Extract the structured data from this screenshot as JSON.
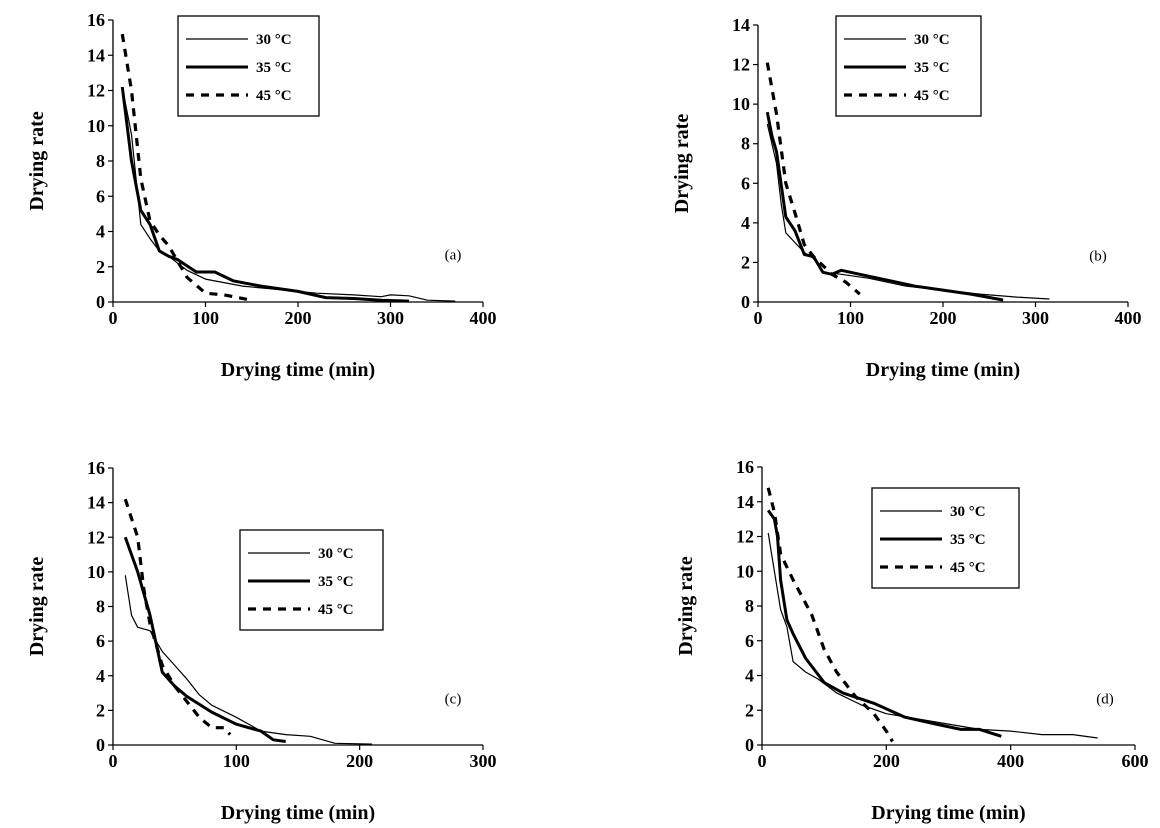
{
  "chart_data": [
    {
      "type": "line",
      "panel_label": "(a)",
      "xlabel": "Drying time (min)",
      "ylabel": "Drying rate",
      "xlim": [
        0,
        400
      ],
      "ylim": [
        0,
        16
      ],
      "xticks": [
        0,
        100,
        200,
        300,
        400
      ],
      "yticks": [
        0,
        2,
        4,
        6,
        8,
        10,
        12,
        14,
        16
      ],
      "legend_position": "top-center",
      "series": [
        {
          "name": "30 °C",
          "style": "thin",
          "points": [
            [
              10,
              12.2
            ],
            [
              20,
              9.5
            ],
            [
              30,
              4.4
            ],
            [
              40,
              3.6
            ],
            [
              50,
              2.9
            ],
            [
              60,
              2.6
            ],
            [
              80,
              1.8
            ],
            [
              100,
              1.3
            ],
            [
              120,
              1.1
            ],
            [
              140,
              0.9
            ],
            [
              160,
              0.8
            ],
            [
              180,
              0.7
            ],
            [
              200,
              0.6
            ],
            [
              220,
              0.5
            ],
            [
              260,
              0.4
            ],
            [
              290,
              0.3
            ],
            [
              300,
              0.4
            ],
            [
              320,
              0.35
            ],
            [
              340,
              0.1
            ],
            [
              370,
              0.05
            ]
          ]
        },
        {
          "name": "35 °C",
          "style": "thick",
          "points": [
            [
              10,
              12.2
            ],
            [
              20,
              8
            ],
            [
              30,
              5.2
            ],
            [
              40,
              4.4
            ],
            [
              50,
              2.9
            ],
            [
              60,
              2.6
            ],
            [
              70,
              2.4
            ],
            [
              90,
              1.7
            ],
            [
              110,
              1.7
            ],
            [
              130,
              1.2
            ],
            [
              160,
              0.9
            ],
            [
              200,
              0.6
            ],
            [
              230,
              0.25
            ],
            [
              260,
              0.2
            ],
            [
              290,
              0.1
            ],
            [
              320,
              0.05
            ]
          ]
        },
        {
          "name": "45 °C",
          "style": "dashed",
          "points": [
            [
              10,
              15.2
            ],
            [
              20,
              12
            ],
            [
              30,
              7
            ],
            [
              40,
              4.6
            ],
            [
              50,
              3.8
            ],
            [
              60,
              3.2
            ],
            [
              80,
              1.4
            ],
            [
              100,
              0.5
            ],
            [
              120,
              0.4
            ],
            [
              150,
              0.1
            ]
          ]
        }
      ]
    },
    {
      "type": "line",
      "panel_label": "(b)",
      "xlabel": "Drying time (min)",
      "ylabel": "Drying rate",
      "xlim": [
        0,
        400
      ],
      "ylim": [
        0,
        14
      ],
      "xticks": [
        0,
        100,
        200,
        300,
        400
      ],
      "yticks": [
        0,
        2,
        4,
        6,
        8,
        10,
        12,
        14
      ],
      "legend_position": "top-center",
      "series": [
        {
          "name": "30 °C",
          "style": "thin",
          "points": [
            [
              10,
              9
            ],
            [
              20,
              7
            ],
            [
              25,
              5
            ],
            [
              30,
              3.5
            ],
            [
              40,
              3
            ],
            [
              50,
              2.5
            ],
            [
              60,
              2.2
            ],
            [
              70,
              1.5
            ],
            [
              90,
              1.4
            ],
            [
              120,
              1.2
            ],
            [
              160,
              0.8
            ],
            [
              200,
              0.6
            ],
            [
              240,
              0.4
            ],
            [
              280,
              0.25
            ],
            [
              315,
              0.15
            ]
          ]
        },
        {
          "name": "35 °C",
          "style": "thick",
          "points": [
            [
              10,
              9.6
            ],
            [
              15,
              8.4
            ],
            [
              20,
              7.6
            ],
            [
              30,
              4.3
            ],
            [
              40,
              3.6
            ],
            [
              50,
              2.4
            ],
            [
              60,
              2.3
            ],
            [
              70,
              1.5
            ],
            [
              80,
              1.4
            ],
            [
              90,
              1.6
            ],
            [
              110,
              1.4
            ],
            [
              140,
              1.1
            ],
            [
              170,
              0.8
            ],
            [
              200,
              0.6
            ],
            [
              230,
              0.4
            ],
            [
              265,
              0.1
            ]
          ]
        },
        {
          "name": "45 °C",
          "style": "dashed",
          "points": [
            [
              10,
              12.1
            ],
            [
              20,
              9.5
            ],
            [
              30,
              6
            ],
            [
              40,
              4.5
            ],
            [
              50,
              2.9
            ],
            [
              60,
              2.3
            ],
            [
              80,
              1.4
            ],
            [
              95,
              1
            ],
            [
              110,
              0.4
            ]
          ]
        }
      ]
    },
    {
      "type": "line",
      "panel_label": "(c)",
      "xlabel": "Drying time (min)",
      "ylabel": "Drying rate",
      "xlim": [
        0,
        300
      ],
      "ylim": [
        0,
        16
      ],
      "xticks": [
        0,
        100,
        200,
        300
      ],
      "yticks": [
        0,
        2,
        4,
        6,
        8,
        10,
        12,
        14,
        16
      ],
      "legend_position": "center",
      "series": [
        {
          "name": "30 °C",
          "style": "thin",
          "points": [
            [
              10,
              9.8
            ],
            [
              15,
              7.5
            ],
            [
              20,
              6.8
            ],
            [
              30,
              6.6
            ],
            [
              40,
              5.4
            ],
            [
              50,
              4.6
            ],
            [
              60,
              3.8
            ],
            [
              70,
              2.9
            ],
            [
              80,
              2.3
            ],
            [
              100,
              1.6
            ],
            [
              120,
              0.8
            ],
            [
              140,
              0.6
            ],
            [
              160,
              0.5
            ],
            [
              180,
              0.1
            ],
            [
              210,
              0.05
            ]
          ]
        },
        {
          "name": "35 °C",
          "style": "thick",
          "points": [
            [
              10,
              12
            ],
            [
              20,
              10
            ],
            [
              30,
              7.5
            ],
            [
              40,
              4.2
            ],
            [
              50,
              3.4
            ],
            [
              60,
              2.8
            ],
            [
              80,
              1.9
            ],
            [
              100,
              1.2
            ],
            [
              120,
              0.8
            ],
            [
              130,
              0.3
            ],
            [
              140,
              0.2
            ]
          ]
        },
        {
          "name": "45 °C",
          "style": "dashed",
          "points": [
            [
              10,
              14.2
            ],
            [
              20,
              12
            ],
            [
              25,
              9
            ],
            [
              30,
              7
            ],
            [
              40,
              4.6
            ],
            [
              50,
              3.4
            ],
            [
              60,
              2.5
            ],
            [
              70,
              1.6
            ],
            [
              80,
              1
            ],
            [
              90,
              1
            ],
            [
              95,
              0.6
            ]
          ]
        }
      ]
    },
    {
      "type": "line",
      "panel_label": "(d)",
      "xlabel": "Drying time (min)",
      "ylabel": "Drying rate",
      "xlim": [
        0,
        600
      ],
      "ylim": [
        0,
        16
      ],
      "xticks": [
        0,
        200,
        400,
        600
      ],
      "yticks": [
        0,
        2,
        4,
        6,
        8,
        10,
        12,
        14,
        16
      ],
      "legend_position": "top-center",
      "series": [
        {
          "name": "30 °C",
          "style": "thin",
          "points": [
            [
              10,
              12.2
            ],
            [
              20,
              10
            ],
            [
              30,
              7.8
            ],
            [
              40,
              6.8
            ],
            [
              50,
              4.8
            ],
            [
              70,
              4.2
            ],
            [
              90,
              3.8
            ],
            [
              120,
              3
            ],
            [
              160,
              2.3
            ],
            [
              200,
              1.8
            ],
            [
              250,
              1.5
            ],
            [
              300,
              1.2
            ],
            [
              350,
              0.9
            ],
            [
              400,
              0.8
            ],
            [
              450,
              0.6
            ],
            [
              500,
              0.6
            ],
            [
              540,
              0.4
            ]
          ]
        },
        {
          "name": "35 °C",
          "style": "thick",
          "points": [
            [
              10,
              13.5
            ],
            [
              20,
              13
            ],
            [
              25,
              12
            ],
            [
              30,
              9.5
            ],
            [
              40,
              7.2
            ],
            [
              50,
              6.4
            ],
            [
              70,
              5
            ],
            [
              100,
              3.6
            ],
            [
              130,
              3
            ],
            [
              180,
              2.4
            ],
            [
              230,
              1.6
            ],
            [
              280,
              1.2
            ],
            [
              320,
              0.9
            ],
            [
              350,
              0.9
            ],
            [
              385,
              0.5
            ]
          ]
        },
        {
          "name": "45 °C",
          "style": "dashed",
          "points": [
            [
              10,
              14.8
            ],
            [
              20,
              13.4
            ],
            [
              30,
              11
            ],
            [
              50,
              9.5
            ],
            [
              80,
              7.5
            ],
            [
              100,
              5.5
            ],
            [
              120,
              4.2
            ],
            [
              150,
              2.8
            ],
            [
              180,
              1.8
            ],
            [
              200,
              0.8
            ],
            [
              210,
              0.2
            ]
          ]
        }
      ]
    }
  ]
}
